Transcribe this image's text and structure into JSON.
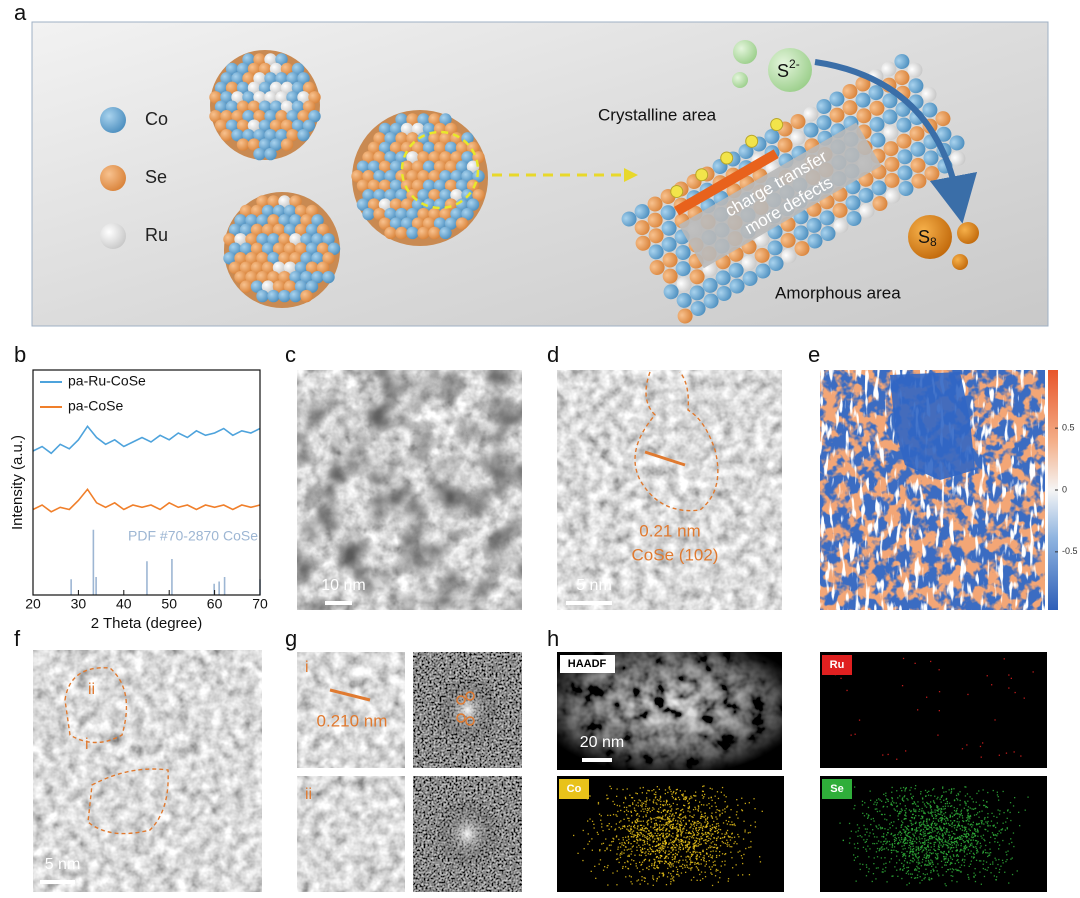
{
  "figure": {
    "panel_labels": [
      "a",
      "b",
      "c",
      "d",
      "e",
      "f",
      "g",
      "h"
    ],
    "a": {
      "legend": [
        "Co",
        "Se",
        "Ru"
      ],
      "ion_label": "S",
      "ion_charge": "2-",
      "product_label": "S",
      "product_subscript": "8",
      "crystalline": "Crystalline area",
      "arrow_text_1": "charge transfer",
      "arrow_text_2": "more defects",
      "amorphous": "Amorphous area"
    },
    "b": {
      "type": "line",
      "xlabel": "2 Theta (degree)",
      "ylabel": "Intensity (a.u.)",
      "xlim": [
        20,
        70
      ],
      "xticks": [
        20,
        30,
        40,
        50,
        60,
        70
      ],
      "ylim": [
        0,
        10
      ],
      "x": [
        20,
        22,
        24,
        26,
        28,
        30,
        32,
        34,
        36,
        38,
        40,
        42,
        44,
        46,
        48,
        50,
        52,
        54,
        56,
        58,
        60,
        62,
        64,
        66,
        68,
        70
      ],
      "series": [
        {
          "name": "pa-Ru-CoSe",
          "color": "#4ea3dc",
          "values": [
            6.4,
            6.6,
            6.3,
            6.7,
            6.5,
            6.9,
            7.5,
            7.0,
            6.7,
            6.9,
            6.6,
            6.8,
            7.0,
            6.8,
            7.1,
            6.9,
            7.2,
            7.0,
            7.3,
            7.1,
            7.2,
            7.4,
            7.1,
            7.3,
            7.2,
            7.4
          ]
        },
        {
          "name": "pa-CoSe",
          "color": "#f07f2a",
          "values": [
            3.8,
            4.0,
            3.7,
            3.9,
            3.8,
            4.2,
            4.7,
            4.1,
            3.9,
            4.1,
            3.8,
            4.0,
            3.9,
            4.0,
            3.8,
            4.1,
            3.9,
            4.0,
            3.8,
            4.0,
            3.9,
            4.0,
            3.8,
            4.0,
            3.9,
            4.0
          ]
        }
      ],
      "reference": {
        "label": "PDF #70-2870 CoSe",
        "color": "#9db6d3",
        "positions": [
          28.4,
          33.3,
          33.9,
          45.1,
          50.6,
          59.9,
          61.0,
          62.2,
          70.0
        ],
        "heights": [
          0.7,
          2.9,
          0.8,
          1.5,
          1.6,
          0.5,
          0.6,
          0.8,
          0.7
        ]
      }
    },
    "c": {
      "scale_bar": "10 nm"
    },
    "d": {
      "spacing": "0.21 nm",
      "plane": "CoSe (102)",
      "scale_bar": "5 nm"
    },
    "e": {
      "colorbar_lim": [
        -0.97,
        0.97
      ],
      "colorbar_ticks": [
        0.5,
        0,
        -0.5
      ]
    },
    "f": {
      "region_1": "i",
      "region_2": "ii",
      "scale_bar": "5 nm"
    },
    "g": {
      "region_1": "i",
      "spacing": "0.210 nm",
      "region_2": "ii"
    },
    "h": {
      "haadf": "HAADF",
      "scale_bar": "20 nm",
      "maps": [
        "Ru",
        "Co",
        "Se"
      ]
    }
  }
}
